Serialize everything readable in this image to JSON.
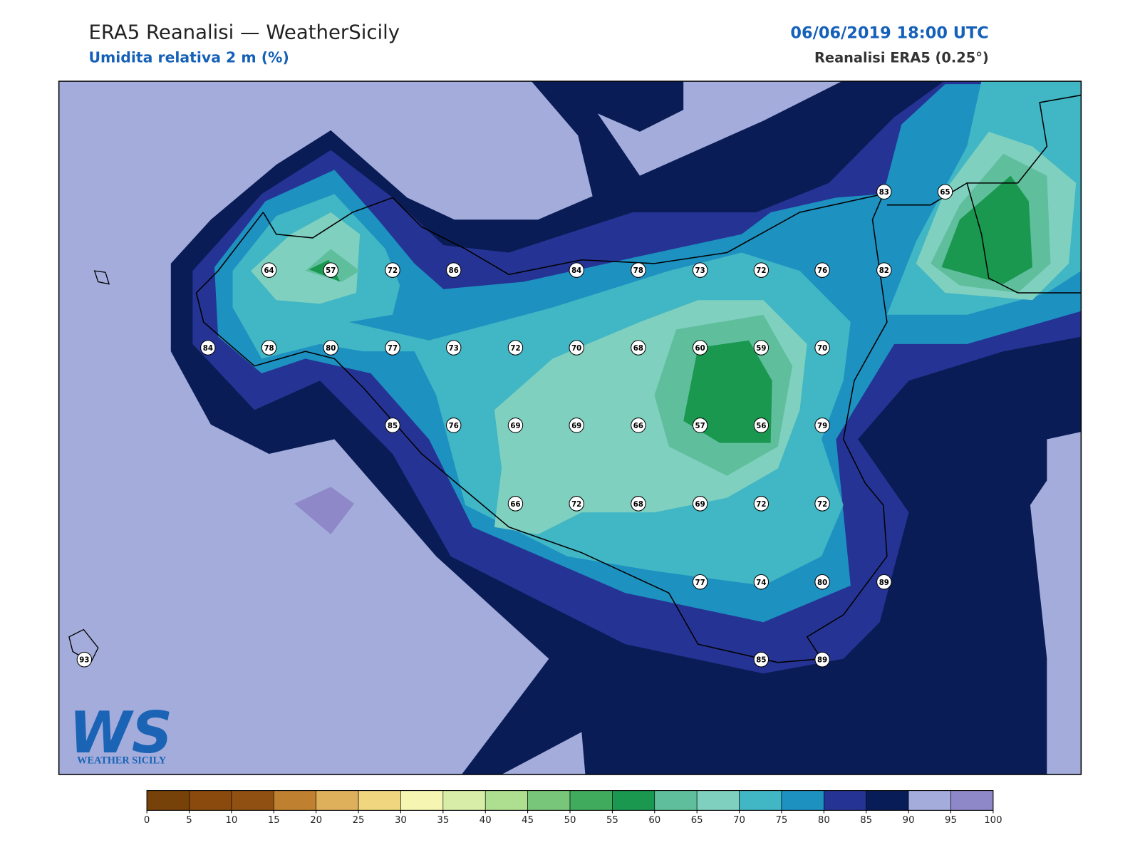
{
  "header": {
    "title": "ERA5 Reanalisi — WeatherSicily",
    "subtitle": "Umidita relativa 2 m (%)",
    "datetime": "06/06/2019 18:00 UTC",
    "source": "Reanalisi ERA5 (0.25°)"
  },
  "map": {
    "stations": [
      64,
      57,
      72,
      86,
      84,
      78,
      73,
      72,
      76,
      82,
      83,
      65,
      84,
      78,
      80,
      77,
      73,
      72,
      70,
      68,
      60,
      59,
      70,
      85,
      76,
      69,
      69,
      66,
      57,
      56,
      79,
      66,
      72,
      68,
      69,
      72,
      72,
      77,
      74,
      80,
      89,
      85,
      89,
      93
    ]
  },
  "colorbar": {
    "ticks": [
      0,
      5,
      10,
      15,
      20,
      25,
      30,
      35,
      40,
      45,
      50,
      55,
      60,
      65,
      70,
      75,
      80,
      85,
      90,
      95,
      100
    ],
    "colors": [
      "#774209",
      "#8a4a0d",
      "#8f5012",
      "#bf8030",
      "#dfb05c",
      "#f0d67e",
      "#f6f6b2",
      "#d8eda8",
      "#aede8f",
      "#78c679",
      "#41ab5d",
      "#1a9850",
      "#5fbf9c",
      "#80d0c0",
      "#41b6c4",
      "#1d91c0",
      "#253494",
      "#081d58",
      "#a3acdb",
      "#8e88c8"
    ]
  },
  "logo": {
    "mark": "WS",
    "text": "WEATHER SICILY"
  }
}
